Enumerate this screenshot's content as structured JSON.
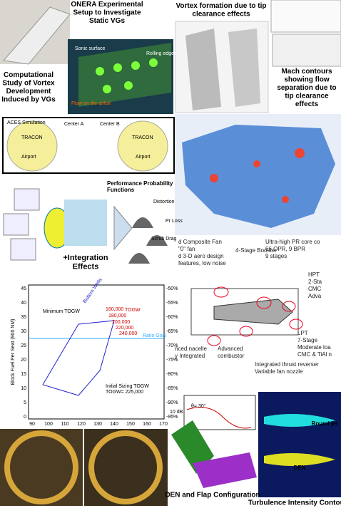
{
  "panels": {
    "onera": {
      "title": "ONERA Experimental Setup to Investigate Static VGs"
    },
    "vortex_sim": {
      "title": "Computational Study of Vortex Development Induced by VGs",
      "labels": [
        "Sonic surface",
        "Flow on the airfoil",
        "Rolling edges"
      ]
    },
    "tip_vortex": {
      "title": "Vortex formation due to tip clearance effects"
    },
    "mach": {
      "title": "Mach contours showing flow separation due to tip clearance effects"
    },
    "aces": {
      "title": "ACES Simulation",
      "labels": [
        "TRACON",
        "TRACON",
        "Center A",
        "Center B",
        "Airport",
        "Airport"
      ]
    },
    "probability": {
      "title": "Performance Probability Functions",
      "caption": "+Integration Effects",
      "labels": [
        "Distortion",
        "Pr Loss",
        "Scrub Drag"
      ]
    },
    "engine": {
      "labels": [
        "d Composite Fan",
        "\"0\" fan",
        "d 3-D aero design",
        "features, low noise",
        "4-Stage Booster",
        "Ultra-high PR core co",
        "66 OPR, 9 BPR",
        "9 stages",
        "HPT",
        "2-Sta",
        "CMC",
        "Adva",
        "LPT",
        "7-Stage",
        "Moderate loa",
        "CMC & TiAl n",
        "Integrated thrust reverser",
        "Variable fan nozzle",
        "nced nacelle",
        "y Integrated",
        "Advanced",
        "combustor"
      ]
    },
    "fuel_chart": {
      "y_label": "Block Fuel Per Seat (900 NM)",
      "yticks": [
        "45",
        "40",
        "35",
        "30",
        "25",
        "20",
        "15",
        "10",
        "5",
        "0"
      ],
      "y2ticks": [
        "-50%",
        "-55%",
        "-60%",
        "-65%",
        "-70%",
        "-75%",
        "-80%",
        "-85%",
        "-90%",
        "-95%"
      ],
      "xticks": [
        "90",
        "100",
        "110",
        "120",
        "130",
        "140",
        "150",
        "160",
        "170"
      ],
      "labels": [
        "Minimum TOGW",
        "Bottom Wells",
        "TOGW",
        "160,000",
        "180,000",
        "200,000",
        "220,000",
        "240,000",
        "Initial Sizing TOGW",
        "TOGW= 225,000",
        "Ratio Goal"
      ]
    },
    "spectrum": {
      "labels": [
        "θ= 30°",
        "10 dB"
      ]
    },
    "den": {
      "title": "DEN and Flap Configuration"
    },
    "turbulence": {
      "title": "Turbulence Intensity Contours",
      "labels": [
        "Round jet",
        "DEN"
      ]
    }
  }
}
